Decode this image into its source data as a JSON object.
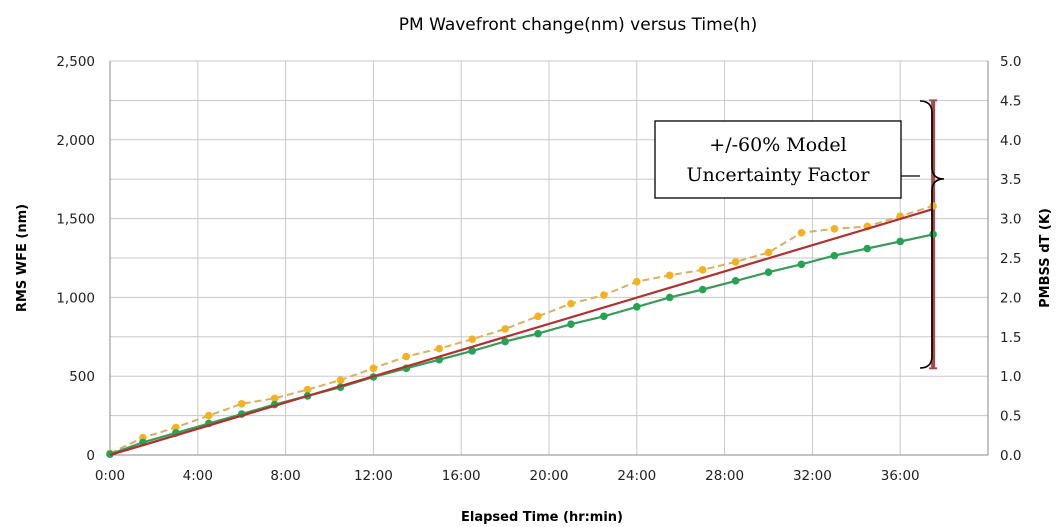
{
  "chart_data": {
    "type": "line",
    "title": "PM Wavefront change(nm) versus Time(h)",
    "xlabel": "Elapsed Time (hr:min)",
    "ylabel": "RMS WFE (nm)",
    "y2label": "PMBSS dT (K)",
    "xlim": [
      0,
      40
    ],
    "ylim": [
      0,
      2500
    ],
    "y2lim": [
      0,
      5
    ],
    "grid": true,
    "x_ticks": [
      {
        "v": 0,
        "label": "0:00"
      },
      {
        "v": 4,
        "label": "4:00"
      },
      {
        "v": 8,
        "label": "8:00"
      },
      {
        "v": 12,
        "label": "12:00"
      },
      {
        "v": 16,
        "label": "16:00"
      },
      {
        "v": 20,
        "label": "20:00"
      },
      {
        "v": 24,
        "label": "24:00"
      },
      {
        "v": 28,
        "label": "28:00"
      },
      {
        "v": 32,
        "label": "32:00"
      },
      {
        "v": 36,
        "label": "36:00"
      }
    ],
    "y_ticks": [
      {
        "v": 0,
        "label": "0"
      },
      {
        "v": 500,
        "label": "500"
      },
      {
        "v": 1000,
        "label": "1,000"
      },
      {
        "v": 1500,
        "label": "1,500"
      },
      {
        "v": 2000,
        "label": "2,000"
      },
      {
        "v": 2500,
        "label": "2,500"
      }
    ],
    "y2_ticks": [
      {
        "v": 0,
        "label": "0.0"
      },
      {
        "v": 0.5,
        "label": "0.5"
      },
      {
        "v": 1,
        "label": "1.0"
      },
      {
        "v": 1.5,
        "label": "1.5"
      },
      {
        "v": 2,
        "label": "2.0"
      },
      {
        "v": 2.5,
        "label": "2.5"
      },
      {
        "v": 3,
        "label": "3.0"
      },
      {
        "v": 3.5,
        "label": "3.5"
      },
      {
        "v": 4,
        "label": "4.0"
      },
      {
        "v": 4.5,
        "label": "4.5"
      },
      {
        "v": 5,
        "label": "5.0"
      }
    ],
    "series": [
      {
        "color": "#f5b21e",
        "line_color": "#d8b060",
        "dashed": true,
        "axis": "y2",
        "x": [
          0,
          1.5,
          3,
          4.5,
          6,
          7.5,
          9,
          10.5,
          12,
          13.5,
          15,
          16.5,
          18,
          19.5,
          21,
          22.5,
          24,
          25.5,
          27,
          28.5,
          30,
          31.5,
          33,
          34.5,
          36,
          37.5
        ],
        "values": [
          0.02,
          0.22,
          0.35,
          0.5,
          0.65,
          0.72,
          0.83,
          0.95,
          1.1,
          1.25,
          1.35,
          1.47,
          1.6,
          1.76,
          1.92,
          2.03,
          2.2,
          2.28,
          2.35,
          2.45,
          2.57,
          2.82,
          2.87,
          2.9,
          3.03,
          3.16
        ]
      },
      {
        "color": "#23a455",
        "line_color": "#3a9a5a",
        "dashed": false,
        "axis": "y",
        "x": [
          0,
          1.5,
          3,
          4.5,
          6,
          7.5,
          9,
          10.5,
          12,
          13.5,
          15,
          16.5,
          18,
          19.5,
          21,
          22.5,
          24,
          25.5,
          27,
          28.5,
          30,
          31.5,
          33,
          34.5,
          36,
          37.5
        ],
        "values": [
          5,
          80,
          140,
          200,
          260,
          320,
          375,
          430,
          495,
          550,
          605,
          660,
          720,
          770,
          830,
          880,
          940,
          1000,
          1050,
          1105,
          1160,
          1210,
          1265,
          1310,
          1355,
          1400
        ]
      },
      {
        "color": "#b0302e",
        "dashed": false,
        "axis": "y",
        "x": [
          0,
          37.5
        ],
        "values": [
          0,
          1560
        ]
      }
    ],
    "error_bar": {
      "color": "#a84848",
      "x": 37.5,
      "y2_low": 1.1,
      "y2_high": 4.5
    },
    "annotation": {
      "lines": [
        "+/-60% Model",
        "Uncertainty Factor"
      ]
    }
  }
}
